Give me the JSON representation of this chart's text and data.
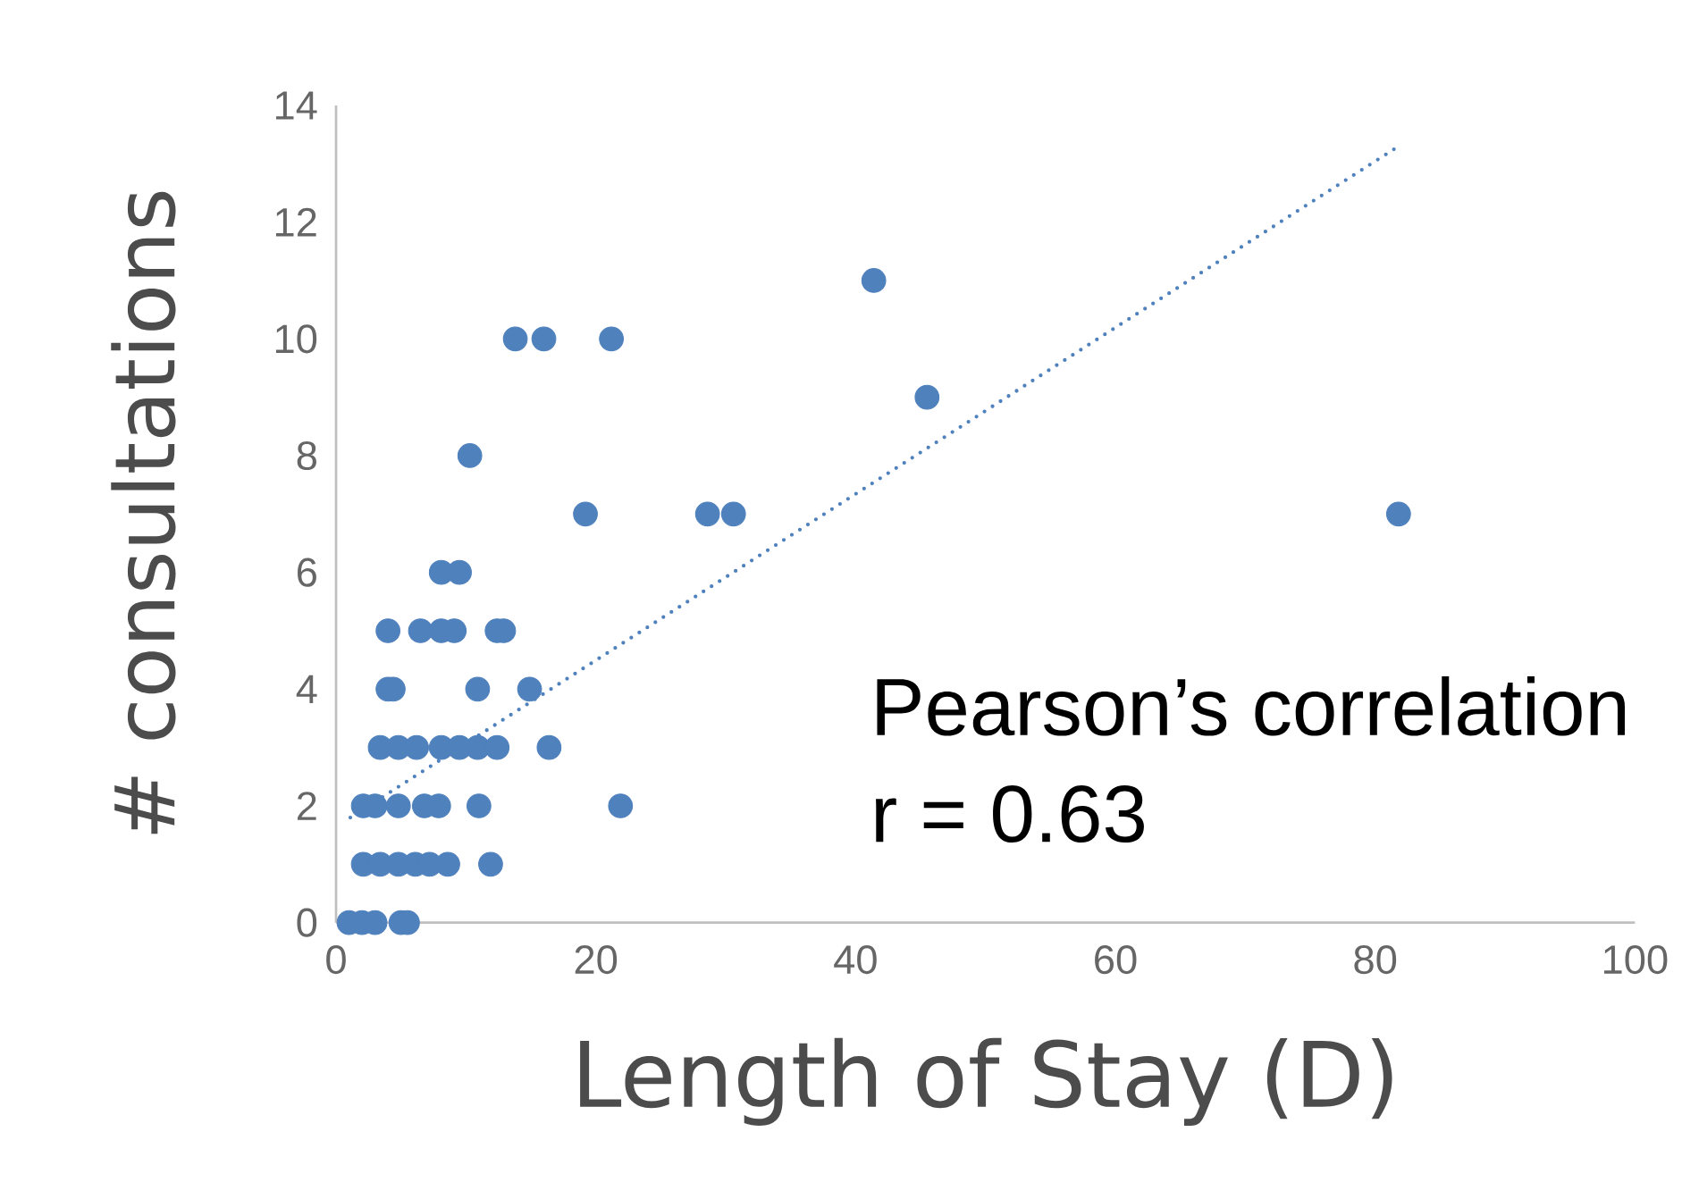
{
  "chart_data": {
    "type": "scatter",
    "xlabel": "Length of Stay (D)",
    "ylabel": "# consultations",
    "xlim": [
      0,
      100
    ],
    "ylim": [
      0,
      14
    ],
    "xticks": [
      0,
      20,
      40,
      60,
      80,
      100
    ],
    "yticks": [
      0,
      2,
      4,
      6,
      8,
      10,
      12,
      14
    ],
    "annotations": [
      "Pearson’s correlation",
      "r = 0.63"
    ],
    "series": [
      {
        "color": "#4f81bd",
        "marker": "circle",
        "x": [
          1,
          2,
          3,
          5,
          5.5,
          2.1,
          3.4,
          4.8,
          6.1,
          7.2,
          8.6,
          11.9,
          2.1,
          3.0,
          4.8,
          6.8,
          7.9,
          11,
          21.9,
          3.4,
          4.8,
          6.2,
          8.1,
          9.5,
          10.9,
          12.4,
          16.4,
          4,
          4.4,
          10.9,
          14.9,
          4,
          6.5,
          8.1,
          9.1,
          12.4,
          12.9,
          8.1,
          9.5,
          19.2,
          28.6,
          30.6,
          81.8,
          10.3,
          45.5,
          13.8,
          16,
          21.2,
          41.4
        ],
        "values": [
          0,
          0,
          0,
          0,
          0,
          1,
          1,
          1,
          1,
          1,
          1,
          1,
          2,
          2,
          2,
          2,
          2,
          2,
          2,
          3,
          3,
          3,
          3,
          3,
          3,
          3,
          3,
          4,
          4,
          4,
          4,
          5,
          5,
          5,
          5,
          5,
          5,
          6,
          6,
          7,
          7,
          7,
          7,
          8,
          9,
          10,
          10,
          10,
          11
        ]
      },
      {
        "type": "line",
        "color": "#4f81bd",
        "marker": "none",
        "line_style": "dotted",
        "x": [
          1.1,
          81.8
        ],
        "values": [
          1.8,
          13.3
        ]
      }
    ]
  }
}
